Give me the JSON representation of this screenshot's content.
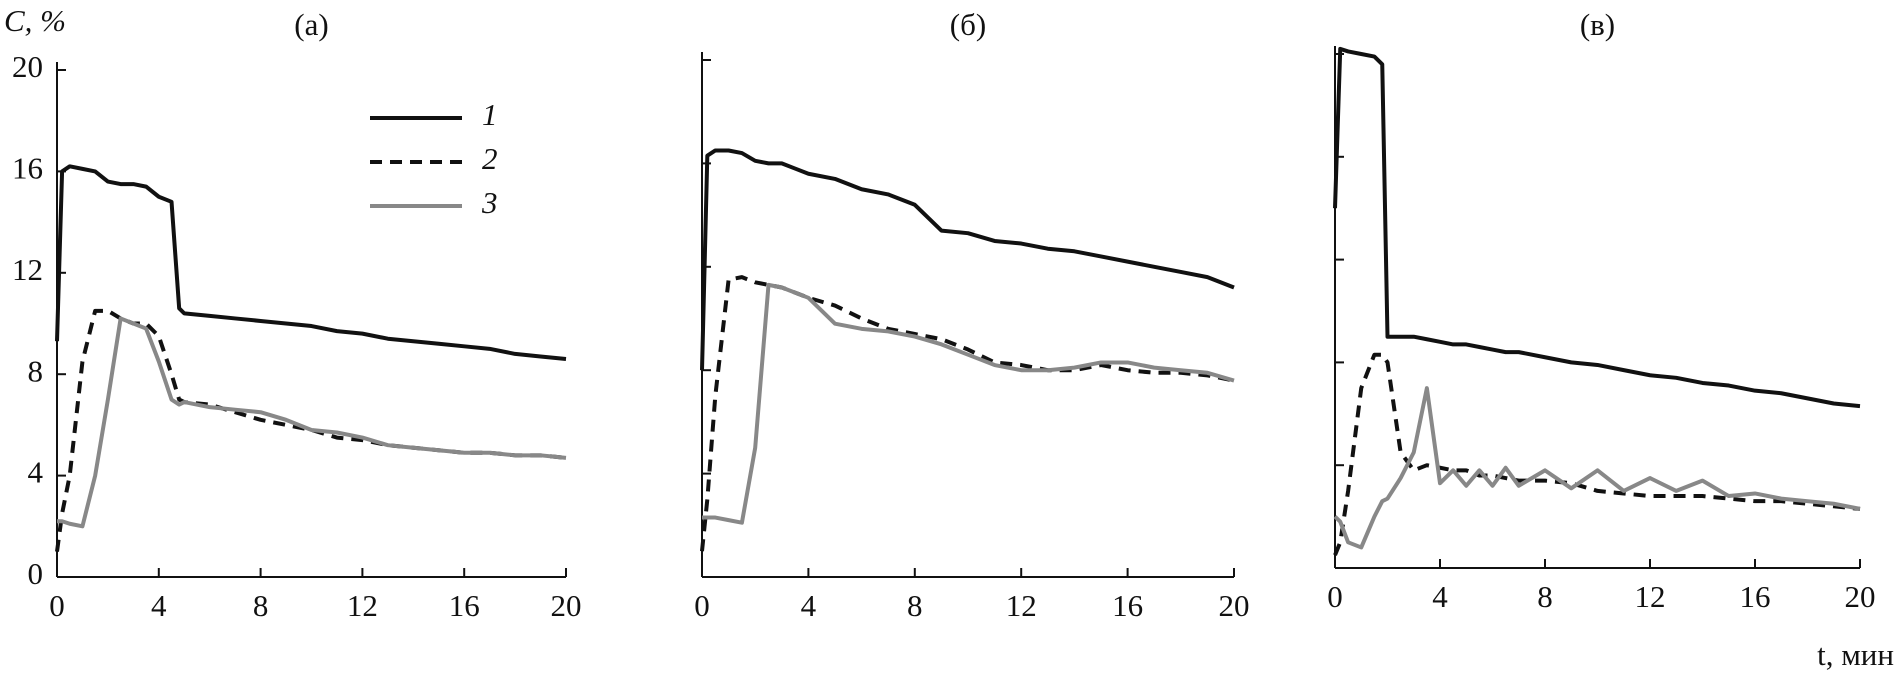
{
  "chart_data": [
    {
      "type": "line",
      "title": "(а)",
      "y_label": "C, %",
      "tick_labels": true,
      "legend": "upper right",
      "x": [
        0,
        0.2,
        0.5,
        1,
        1.5,
        2,
        2.5,
        3,
        3.5,
        4,
        4.5,
        4.8,
        5,
        6,
        7,
        8,
        9,
        10,
        11,
        12,
        13,
        14,
        15,
        16,
        17,
        18,
        19,
        20
      ],
      "series": [
        {
          "name": "1",
          "color": "#111111",
          "line_style": "solid",
          "values": [
            9.3,
            16,
            16.2,
            16.1,
            16,
            15.6,
            15.5,
            15.5,
            15.4,
            15,
            14.8,
            10.6,
            10.4,
            10.3,
            10.2,
            10.1,
            10,
            9.9,
            9.7,
            9.6,
            9.4,
            9.3,
            9.2,
            9.1,
            9,
            8.8,
            8.7,
            8.6
          ]
        },
        {
          "name": "2",
          "color": "#111111",
          "line_style": "dashed",
          "values": [
            1,
            2.5,
            4,
            8.5,
            10.5,
            10.5,
            10.2,
            10,
            10,
            9.5,
            8,
            7,
            6.9,
            6.8,
            6.5,
            6.2,
            6,
            5.8,
            5.5,
            5.4,
            5.2,
            5.1,
            5,
            4.9,
            4.9,
            4.8,
            4.8,
            4.7
          ]
        },
        {
          "name": "3",
          "color": "#888888",
          "line_style": "solid",
          "values": [
            2.2,
            2.2,
            2.1,
            2,
            4,
            7,
            10.2,
            10,
            9.8,
            8.5,
            7,
            6.8,
            6.9,
            6.7,
            6.6,
            6.5,
            6.2,
            5.8,
            5.7,
            5.5,
            5.2,
            5.1,
            5,
            4.9,
            4.9,
            4.8,
            4.8,
            4.7
          ]
        }
      ],
      "xlim": [
        0,
        20
      ],
      "xticks": [
        0,
        4,
        8,
        12,
        16,
        20
      ],
      "ylim": [
        0,
        20
      ],
      "yticks": [
        0,
        4,
        8,
        12,
        16,
        20
      ]
    },
    {
      "type": "line",
      "title": "(б)",
      "tick_labels": false,
      "x": [
        0,
        0.2,
        0.5,
        1,
        1.5,
        2,
        2.5,
        3,
        3.5,
        4,
        5,
        6,
        7,
        8,
        9,
        10,
        11,
        12,
        13,
        14,
        15,
        16,
        17,
        18,
        19,
        20
      ],
      "series": [
        {
          "color": "#111111",
          "line_style": "solid",
          "values": [
            8,
            16.3,
            16.5,
            16.5,
            16.4,
            16.1,
            16,
            16,
            15.8,
            15.6,
            15.4,
            15,
            14.8,
            14.4,
            13.4,
            13.3,
            13,
            12.9,
            12.7,
            12.6,
            12.4,
            12.2,
            12,
            11.8,
            11.6,
            11.2
          ]
        },
        {
          "color": "#111111",
          "line_style": "dashed",
          "values": [
            1,
            3,
            7,
            11.5,
            11.6,
            11.4,
            11.3,
            11.2,
            11,
            10.8,
            10.5,
            10,
            9.6,
            9.4,
            9.2,
            8.8,
            8.3,
            8.2,
            8,
            8,
            8.2,
            8,
            7.9,
            7.9,
            7.8,
            7.6
          ]
        },
        {
          "color": "#888888",
          "line_style": "solid",
          "values": [
            2.3,
            2.3,
            2.3,
            2.2,
            2.1,
            5,
            11.3,
            11.2,
            11,
            10.8,
            9.8,
            9.6,
            9.5,
            9.3,
            9,
            8.6,
            8.2,
            8,
            8,
            8.1,
            8.3,
            8.3,
            8.1,
            8,
            7.9,
            7.6
          ]
        }
      ],
      "xlim": [
        0,
        20
      ],
      "xticks": [
        0,
        4,
        8,
        12,
        16,
        20
      ],
      "ylim": [
        0,
        20
      ],
      "yticks": [
        0,
        4,
        8,
        12,
        16,
        20
      ]
    },
    {
      "type": "line",
      "title": "(в)",
      "x_label": "t, мин",
      "tick_labels": false,
      "x": [
        0,
        0.2,
        0.5,
        1,
        1.5,
        1.8,
        2,
        2.5,
        3,
        3.5,
        4,
        4.5,
        5,
        5.5,
        6,
        6.5,
        7,
        8,
        9,
        10,
        11,
        12,
        13,
        14,
        15,
        16,
        17,
        18,
        19,
        20
      ],
      "series": [
        {
          "color": "#111111",
          "line_style": "solid",
          "values": [
            14,
            20.2,
            20.1,
            20,
            19.9,
            19.6,
            9,
            9,
            9,
            8.9,
            8.8,
            8.7,
            8.7,
            8.6,
            8.5,
            8.4,
            8.4,
            8.2,
            8,
            7.9,
            7.7,
            7.5,
            7.4,
            7.2,
            7.1,
            6.9,
            6.8,
            6.6,
            6.4,
            6.3
          ]
        },
        {
          "color": "#111111",
          "line_style": "dashed",
          "values": [
            0.5,
            1,
            3,
            7,
            8.3,
            8.3,
            8,
            4.5,
            3.8,
            4,
            3.9,
            3.8,
            3.8,
            3.6,
            3.6,
            3.5,
            3.4,
            3.4,
            3.3,
            3,
            2.9,
            2.8,
            2.8,
            2.8,
            2.7,
            2.6,
            2.6,
            2.5,
            2.4,
            2.3
          ]
        },
        {
          "color": "#888888",
          "line_style": "solid",
          "values": [
            2,
            1.8,
            1,
            0.8,
            2,
            2.6,
            2.7,
            3.5,
            4.5,
            7,
            3.3,
            3.8,
            3.2,
            3.8,
            3.2,
            3.9,
            3.2,
            3.8,
            3.1,
            3.8,
            3,
            3.5,
            3,
            3.4,
            2.8,
            2.9,
            2.7,
            2.6,
            2.5,
            2.3
          ]
        }
      ],
      "xlim": [
        0,
        20
      ],
      "xticks": [
        0,
        4,
        8,
        12,
        16,
        20
      ],
      "ylim": [
        0,
        20
      ],
      "yticks": [
        0,
        4,
        8,
        12,
        16,
        20
      ]
    }
  ]
}
